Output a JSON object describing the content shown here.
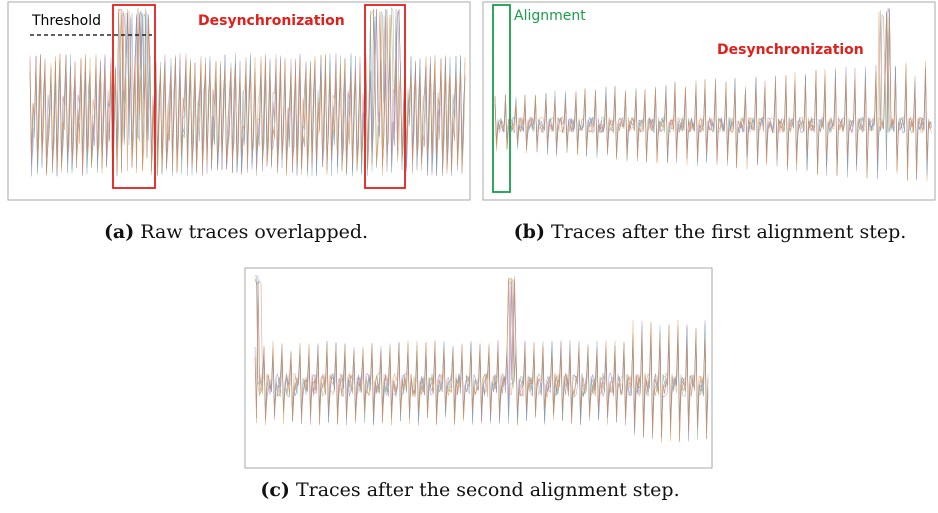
{
  "panels": [
    {
      "label": "(a)",
      "caption": "Raw traces overlapped.",
      "annotations": [
        "Threshold",
        "Desynchronization"
      ]
    },
    {
      "label": "(b)",
      "caption": "Traces after the first alignment step.",
      "annotations": [
        "Alignment",
        "Desynchronization"
      ]
    },
    {
      "label": "(c)",
      "caption": "Traces after the second alignment step.",
      "annotations": []
    }
  ]
}
